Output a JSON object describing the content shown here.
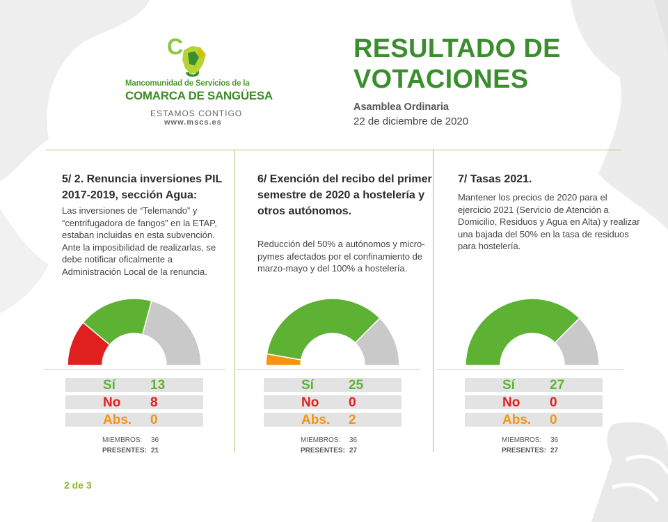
{
  "header": {
    "org_line1": "Mancomunidad de Servicios de la",
    "org_line2": "COMARCA DE SANGÜESA",
    "slogan": "ESTAMOS CONTIGO",
    "website": "www.mscs.es",
    "title_line1": "RESULTADO DE",
    "title_line2": "VOTACIONES",
    "subtitle": "Asamblea Ordinaria",
    "date": "22 de diciembre de 2020"
  },
  "colors": {
    "si": "#5db233",
    "no": "#e0201f",
    "abs": "#f39413",
    "remaining": "#c9c9c9",
    "title_green": "#3b8e2e"
  },
  "votes": [
    {
      "title": "5/ 2. Renuncia inversiones PIL 2017-2019, sección Agua:",
      "description": "Las inversiones de “Telemando” y “centrifugadora de fangos” en la ETAP, estaban incluidas en esta subvención. Ante la imposibilidad de realizarlas, se debe notificar oficalmente a Administración Local de la renuncia.",
      "si_label": "Sí",
      "si": 13,
      "no_label": "No",
      "no": 8,
      "abs_label": "Abs.",
      "abs": 0,
      "members_label": "MIEMBROS:",
      "members": 36,
      "present_label": "PRESENTES:",
      "present": 21
    },
    {
      "title": "6/ Exención del recibo del primer semestre de 2020 a hostelería y otros autónomos.",
      "description": "Reducción del 50% a autónomos y micro-pymes afectados por el confinamiento de marzo-mayo y del 100% a hostelería.",
      "si_label": "Sí",
      "si": 25,
      "no_label": "No",
      "no": 0,
      "abs_label": "Abs.",
      "abs": 2,
      "members_label": "MIEMBROS:",
      "members": 36,
      "present_label": "PRESENTES:",
      "present": 27
    },
    {
      "title": "7/ Tasas 2021.",
      "description": "Mantener los precios de 2020 para el ejercicio 2021 (Servicio de Atención a Domicilio, Residuos y Agua en Alta) y realizar una bajada del 50% en la tasa de residuos para hostelería.",
      "si_label": "Sí",
      "si": 27,
      "no_label": "No",
      "no": 0,
      "abs_label": "Abs.",
      "abs": 0,
      "members_label": "MIEMBROS:",
      "members": 36,
      "present_label": "PRESENTES:",
      "present": 27
    }
  ],
  "page_indicator": "2 de 3"
}
